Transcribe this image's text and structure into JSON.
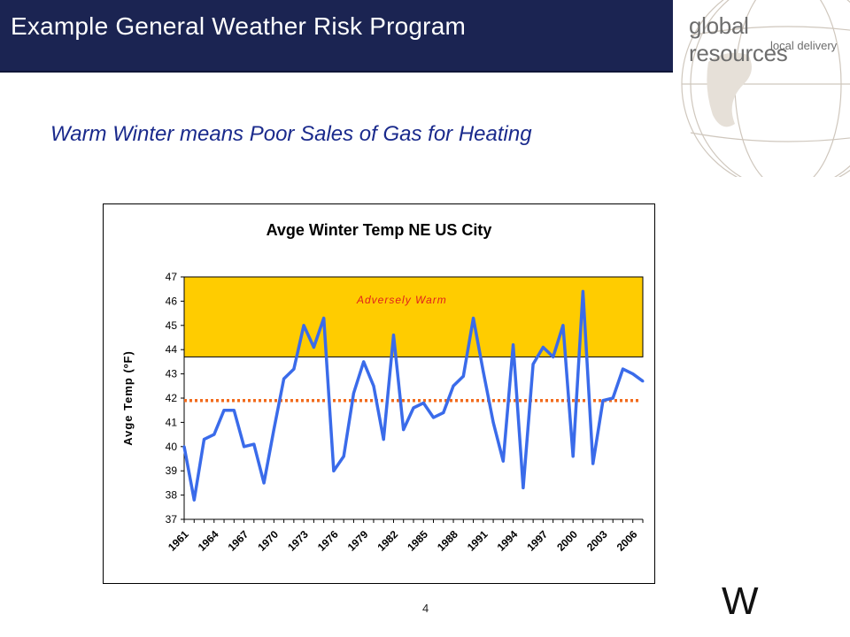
{
  "header": {
    "title": "Example General Weather Risk Program"
  },
  "logo": {
    "line1": "global resources",
    "line2": "local delivery"
  },
  "subtitle": "Warm Winter means Poor Sales of Gas for Heating",
  "footer": {
    "page_number": "4",
    "mark": "W"
  },
  "colors": {
    "header_bg": "#1b2452",
    "subtitle": "#1a2a8c",
    "series_line": "#3a6bea",
    "warm_band": "#ffcc00",
    "mean_line": "#f26a1b",
    "band_label": "#e0201c"
  },
  "chart_data": {
    "type": "line",
    "title": "Avge Winter Temp NE US City",
    "ylabel": "Avge Temp (ºF)",
    "xlabel": "",
    "ylim": [
      37,
      47
    ],
    "yticks": [
      37,
      38,
      39,
      40,
      41,
      42,
      43,
      44,
      45,
      46,
      47
    ],
    "xticks": [
      "1961",
      "1964",
      "1967",
      "1970",
      "1973",
      "1976",
      "1979",
      "1982",
      "1985",
      "1988",
      "1991",
      "1994",
      "1997",
      "2000",
      "2003",
      "2006"
    ],
    "x": [
      1961,
      1962,
      1963,
      1964,
      1965,
      1966,
      1967,
      1968,
      1969,
      1970,
      1971,
      1972,
      1973,
      1974,
      1975,
      1976,
      1977,
      1978,
      1979,
      1980,
      1981,
      1982,
      1983,
      1984,
      1985,
      1986,
      1987,
      1988,
      1989,
      1990,
      1991,
      1992,
      1993,
      1994,
      1995,
      1996,
      1997,
      1998,
      1999,
      2000,
      2001,
      2002,
      2003,
      2004,
      2005,
      2006,
      2007
    ],
    "values": [
      40.0,
      37.8,
      40.3,
      40.5,
      41.5,
      41.5,
      40.0,
      40.1,
      38.5,
      40.7,
      42.8,
      43.2,
      45.0,
      44.1,
      45.3,
      39.0,
      39.6,
      42.2,
      43.5,
      42.5,
      40.3,
      44.6,
      40.7,
      41.6,
      41.8,
      41.2,
      41.4,
      42.5,
      42.9,
      45.3,
      43.1,
      41.0,
      39.4,
      44.2,
      38.3,
      43.4,
      44.1,
      43.7,
      45.0,
      39.6,
      46.4,
      39.3,
      41.9,
      42.0,
      43.2,
      43.0,
      42.7
    ],
    "reference_line": {
      "value": 41.9,
      "style": "dotted"
    },
    "band": {
      "from": 43.7,
      "to": 47,
      "label": "Adversely Warm"
    },
    "grid": false,
    "legend": "none"
  }
}
